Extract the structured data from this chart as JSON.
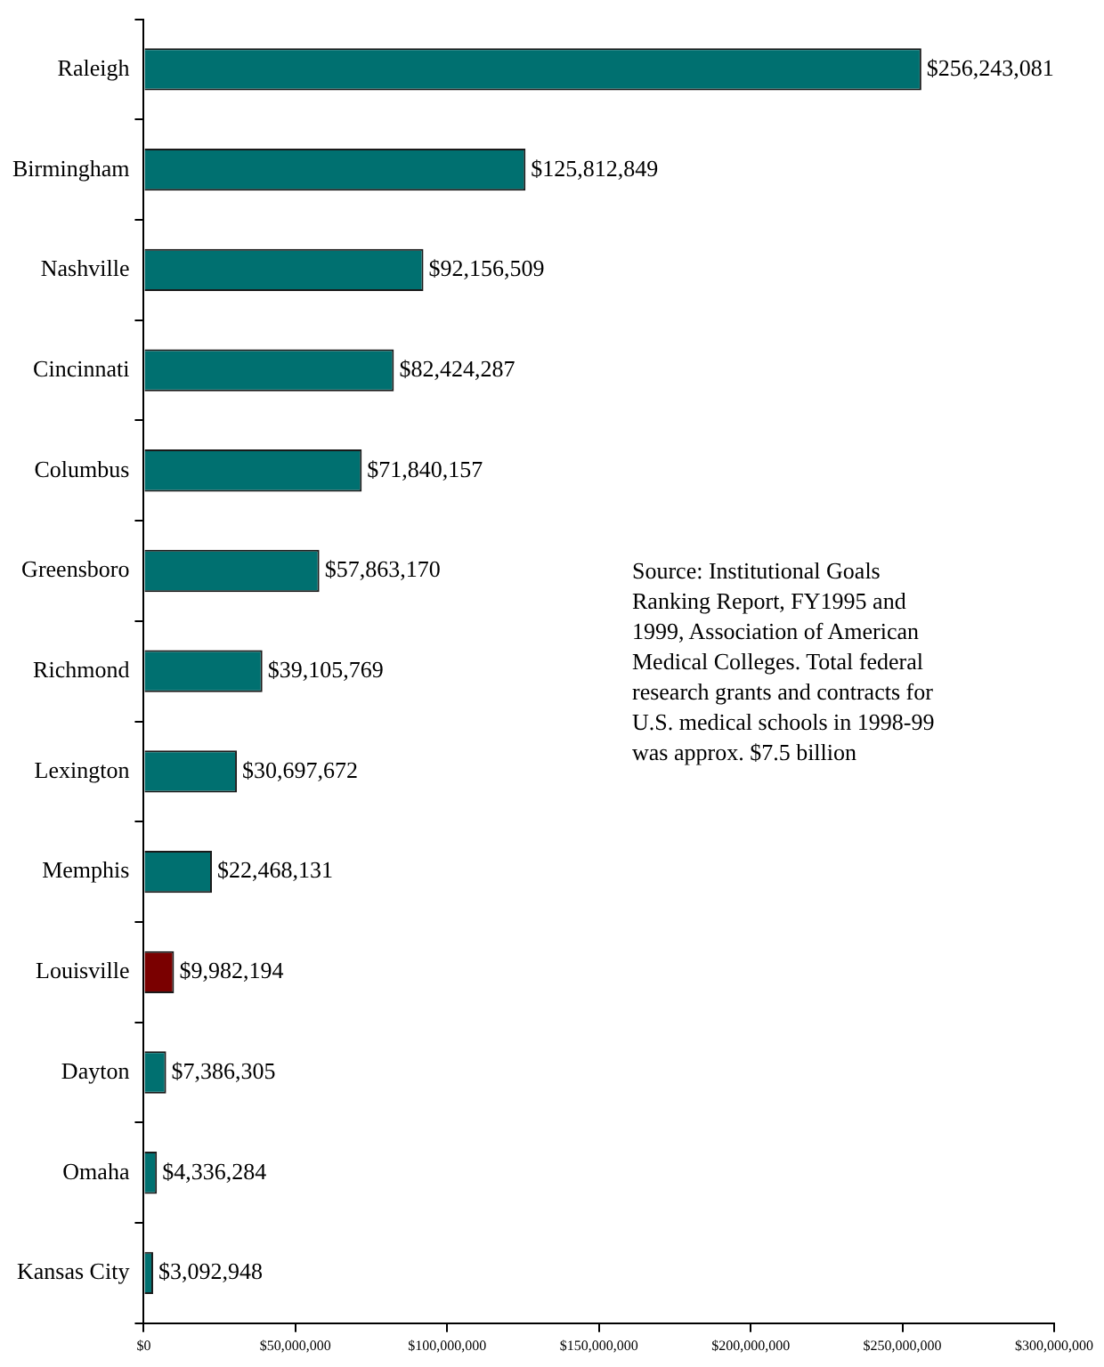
{
  "chart_data": {
    "type": "bar",
    "orientation": "horizontal",
    "categories": [
      "Raleigh",
      "Birmingham",
      "Nashville",
      "Cincinnati",
      "Columbus",
      "Greensboro",
      "Richmond",
      "Lexington",
      "Memphis",
      "Louisville",
      "Dayton",
      "Omaha",
      "Kansas City"
    ],
    "values": [
      256243081,
      125812849,
      92156509,
      82424287,
      71840157,
      57863170,
      39105769,
      30697672,
      22468131,
      9982194,
      7386305,
      4336284,
      3092948
    ],
    "colors": [
      "#007070",
      "#007070",
      "#007070",
      "#007070",
      "#007070",
      "#007070",
      "#007070",
      "#007070",
      "#007070",
      "#7a0000",
      "#007070",
      "#007070",
      "#007070"
    ],
    "value_labels": [
      "$256,243,081",
      "$125,812,849",
      "$92,156,509",
      "$82,424,287",
      "$71,840,157",
      "$57,863,170",
      "$39,105,769",
      "$30,697,672",
      "$22,468,131",
      "$9,982,194",
      "$7,386,305",
      "$4,336,284",
      "$3,092,948"
    ],
    "xlim": [
      0,
      300000000
    ],
    "xticks": [
      {
        "value": 0,
        "label": "$0"
      },
      {
        "value": 50000000,
        "label": "$50,000,000"
      },
      {
        "value": 100000000,
        "label": "$100,000,000"
      },
      {
        "value": 150000000,
        "label": "$150,000,000"
      },
      {
        "value": 200000000,
        "label": "$200,000,000"
      },
      {
        "value": 250000000,
        "label": "$250,000,000"
      },
      {
        "value": 300000000,
        "label": "$300,000,000"
      }
    ],
    "grid": false,
    "legend": false,
    "annotations": [
      "Source: Institutional Goals Ranking Report, FY1995 and 1999, Association of American Medical Colleges.  Total federal research grants and contracts for U.S. medical schools in 1998-99 was approx. $7.5 billion"
    ]
  }
}
